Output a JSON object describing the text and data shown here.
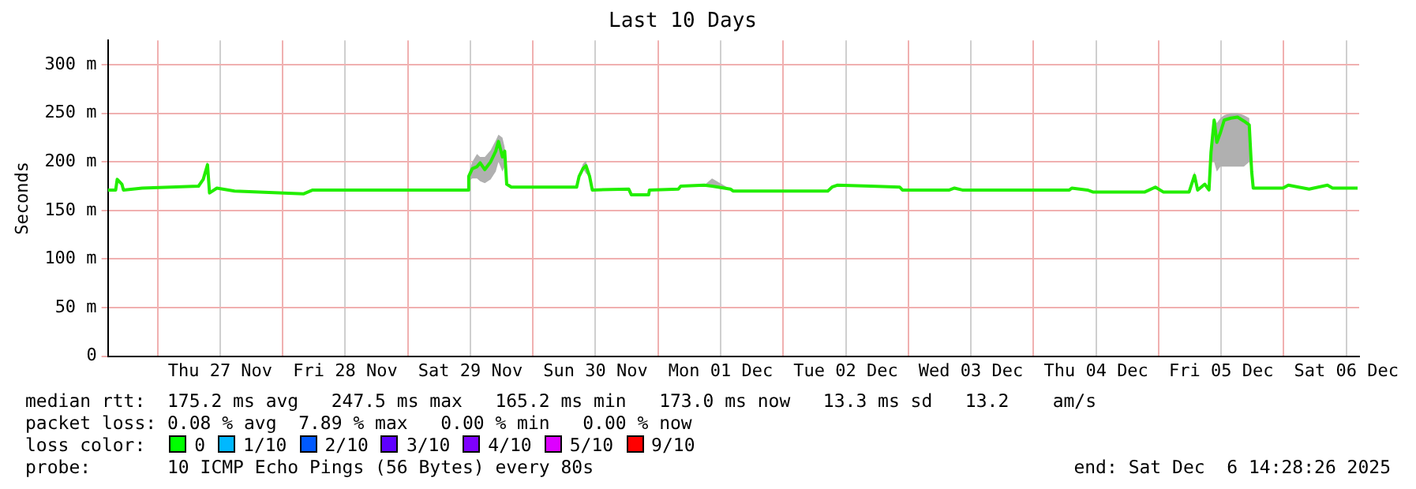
{
  "chart_data": {
    "type": "line",
    "title": "Last 10 Days",
    "ylabel": "Seconds",
    "xlim": [
      "2025-11-26T14:28",
      "2025-12-06T14:28"
    ],
    "xticks": [
      {
        "value": "2025-11-27T00:00",
        "label": null
      },
      {
        "value": "2025-11-27T12:00",
        "label": "Thu 27 Nov"
      },
      {
        "value": "2025-11-28T00:00",
        "label": null
      },
      {
        "value": "2025-11-28T12:00",
        "label": "Fri 28 Nov"
      },
      {
        "value": "2025-11-29T00:00",
        "label": null
      },
      {
        "value": "2025-11-29T12:00",
        "label": "Sat 29 Nov"
      },
      {
        "value": "2025-11-30T00:00",
        "label": null
      },
      {
        "value": "2025-11-30T12:00",
        "label": "Sun 30 Nov"
      },
      {
        "value": "2025-12-01T00:00",
        "label": null
      },
      {
        "value": "2025-12-01T12:00",
        "label": "Mon 01 Dec"
      },
      {
        "value": "2025-12-02T00:00",
        "label": null
      },
      {
        "value": "2025-12-02T12:00",
        "label": "Tue 02 Dec"
      },
      {
        "value": "2025-12-03T00:00",
        "label": null
      },
      {
        "value": "2025-12-03T12:00",
        "label": "Wed 03 Dec"
      },
      {
        "value": "2025-12-04T00:00",
        "label": null
      },
      {
        "value": "2025-12-04T12:00",
        "label": "Thu 04 Dec"
      },
      {
        "value": "2025-12-05T00:00",
        "label": null
      },
      {
        "value": "2025-12-05T12:00",
        "label": "Fri 05 Dec"
      },
      {
        "value": "2025-12-06T00:00",
        "label": null
      },
      {
        "value": "2025-12-06T12:00",
        "label": "Sat 06 Dec"
      }
    ],
    "ylim": [
      0,
      325
    ],
    "yticks": [
      0,
      {
        "value": 50,
        "label": "50 m"
      },
      {
        "value": 100,
        "label": "100 m"
      },
      {
        "value": 150,
        "label": "150 m"
      },
      {
        "value": 200,
        "label": "200 m"
      },
      {
        "value": 250,
        "label": "250 m"
      },
      {
        "value": 300,
        "label": "300 m"
      }
    ],
    "grid": true,
    "legend": false,
    "marker": "none",
    "line_style": "solid",
    "x": [
      "2025-11-26T14:28",
      "2025-11-26T15:58",
      "2025-11-26T16:16",
      "2025-11-26T17:10",
      "2025-11-26T17:28",
      "2025-11-26T21:04",
      "2025-11-27T07:52",
      "2025-11-27T08:46",
      "2025-11-27T09:35",
      "2025-11-27T09:58",
      "2025-11-27T11:23",
      "2025-11-27T14:46",
      "2025-11-28T03:58",
      "2025-11-28T05:46",
      "2025-11-29T11:28",
      "2025-11-29T11:41",
      "2025-11-29T12:22",
      "2025-11-29T13:16",
      "2025-11-29T13:52",
      "2025-11-29T14:46",
      "2025-11-29T15:53",
      "2025-11-29T16:52",
      "2025-11-29T17:23",
      "2025-11-29T18:09",
      "2025-11-29T18:35",
      "2025-11-29T18:58",
      "2025-11-29T19:52",
      "2025-11-30T05:46",
      "2025-11-30T08:23",
      "2025-11-30T08:51",
      "2025-11-30T09:35",
      "2025-11-30T10:11",
      "2025-11-30T10:52",
      "2025-11-30T11:23",
      "2025-11-30T18:22",
      "2025-11-30T18:53",
      "2025-11-30T22:11",
      "2025-11-30T22:21",
      "2025-12-01T03:53",
      "2025-12-01T04:21",
      "2025-12-01T08:51",
      "2025-12-01T10:21",
      "2025-12-01T13:52",
      "2025-12-01T14:23",
      "2025-12-02T08:33",
      "2025-12-02T09:22",
      "2025-12-02T10:21",
      "2025-12-02T16:52",
      "2025-12-02T22:21",
      "2025-12-02T22:52",
      "2025-12-03T07:52",
      "2025-12-03T08:51",
      "2025-12-03T10:21",
      "2025-12-04T06:53",
      "2025-12-04T07:21",
      "2025-12-04T10:21",
      "2025-12-04T11:23",
      "2025-12-04T21:22",
      "2025-12-04T23:23",
      "2025-12-05T00:53",
      "2025-12-05T05:51",
      "2025-12-05T06:53",
      "2025-12-05T07:29",
      "2025-12-05T08:51",
      "2025-12-05T09:40",
      "2025-12-05T10:03",
      "2025-12-05T10:39",
      "2025-12-05T11:10",
      "2025-12-05T11:51",
      "2025-12-05T12:35",
      "2025-12-05T13:52",
      "2025-12-05T15:09",
      "2025-12-05T16:21",
      "2025-12-05T17:23",
      "2025-12-05T17:51",
      "2025-12-05T18:09",
      "2025-12-05T23:51",
      "2025-12-06T00:53",
      "2025-12-06T02:51",
      "2025-12-06T04:52",
      "2025-12-06T08:23",
      "2025-12-06T09:22",
      "2025-12-06T14:10"
    ],
    "series": [
      {
        "color": "#22ee00",
        "values": [
          171,
          171,
          182,
          177,
          171,
          173,
          175,
          182,
          197,
          168,
          173,
          170,
          167,
          171,
          171,
          185,
          193,
          195,
          199,
          192,
          200,
          211,
          221,
          205,
          211,
          177,
          174,
          174,
          174,
          185,
          193,
          196,
          185,
          171,
          172,
          166,
          166,
          171,
          172,
          175,
          176,
          175,
          172,
          170,
          170,
          174,
          176,
          175,
          174,
          171,
          171,
          173,
          171,
          171,
          173,
          171,
          169,
          169,
          174,
          169,
          169,
          186,
          171,
          177,
          171,
          210,
          243,
          220,
          230,
          243,
          245,
          246,
          242,
          238,
          190,
          173,
          173,
          176,
          174,
          172,
          176,
          173,
          173
        ],
        "lower": [
          171,
          171,
          182,
          177,
          171,
          173,
          175,
          182,
          197,
          168,
          173,
          170,
          167,
          171,
          171,
          180,
          183,
          183,
          180,
          178,
          182,
          190,
          200,
          190,
          195,
          177,
          174,
          174,
          174,
          185,
          193,
          188,
          185,
          171,
          172,
          166,
          166,
          171,
          172,
          175,
          176,
          175,
          172,
          170,
          170,
          174,
          176,
          175,
          174,
          171,
          171,
          173,
          171,
          171,
          173,
          171,
          169,
          169,
          174,
          169,
          169,
          186,
          171,
          177,
          171,
          200,
          200,
          190,
          195,
          195,
          195,
          195,
          195,
          200,
          190,
          173,
          173,
          176,
          174,
          172,
          176,
          173,
          173
        ],
        "upper": [
          171,
          171,
          182,
          177,
          171,
          173,
          175,
          182,
          201,
          168,
          173,
          170,
          167,
          171,
          171,
          188,
          200,
          208,
          205,
          205,
          212,
          222,
          228,
          225,
          215,
          177,
          174,
          174,
          174,
          185,
          198,
          201,
          185,
          171,
          172,
          166,
          166,
          171,
          172,
          175,
          176,
          183,
          172,
          170,
          170,
          174,
          176,
          175,
          174,
          171,
          171,
          173,
          171,
          171,
          173,
          171,
          169,
          169,
          174,
          169,
          169,
          190,
          171,
          177,
          171,
          212,
          245,
          240,
          245,
          248,
          250,
          250,
          248,
          245,
          190,
          173,
          173,
          176,
          174,
          172,
          176,
          173,
          173
        ]
      }
    ],
    "annotations": [
      "median rtt:  175.2 ms avg   247.5 ms max   165.2 ms min   173.0 ms now   13.3 ms sd   13.2    am/s",
      "packet loss: 0.08 % avg  7.89 % max   0.00 % min   0.00 % now",
      "loss color:  0  1/10  2/10  3/10  4/10  5/10  9/10",
      "probe:       10 ICMP Echo Pings (56 Bytes) every 80s",
      "end: Sat Dec  6 14:28:26 2025"
    ]
  }
}
